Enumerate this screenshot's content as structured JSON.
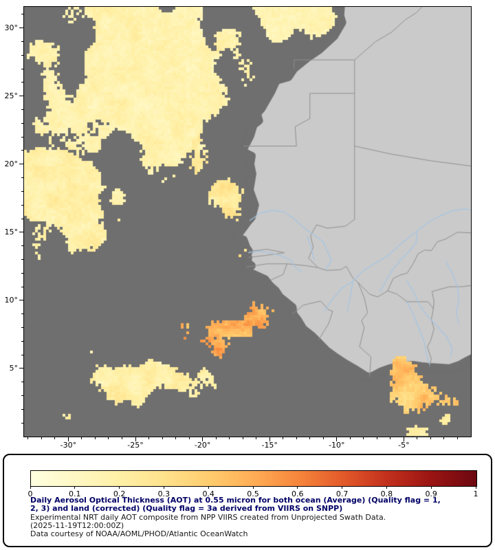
{
  "map": {
    "colors": {
      "no_data": "#6f6f6f",
      "land": "#cacaca",
      "country_border": "#8f8f8f",
      "river": "#a5c6e5",
      "frame": "#000000"
    },
    "y_axis": {
      "ticks": [
        {
          "label": "30°",
          "lat": 30
        },
        {
          "label": "25°",
          "lat": 25
        },
        {
          "label": "20°",
          "lat": 20
        },
        {
          "label": "15°",
          "lat": 15
        },
        {
          "label": "10°",
          "lat": 10
        },
        {
          "label": "5°",
          "lat": 5
        }
      ]
    },
    "x_axis": {
      "ticks": [
        {
          "label": "-30°",
          "lon": -30
        },
        {
          "label": "-25°",
          "lon": -25
        },
        {
          "label": "-20°",
          "lon": -20
        },
        {
          "label": "-15°",
          "lon": -15
        },
        {
          "label": "-10°",
          "lon": -10
        },
        {
          "label": "-5°",
          "lon": -5
        }
      ]
    }
  },
  "legend": {
    "ticks": [
      "0",
      "0.1",
      "0.2",
      "0.3",
      "0.4",
      "0.5",
      "0.6",
      "0.7",
      "0.8",
      "0.9",
      "1"
    ],
    "colors": [
      "#FFFFE0",
      "#FFF8C4",
      "#FFF0A6",
      "#FFE28C",
      "#FFCC6E",
      "#FFAD55",
      "#F6863C",
      "#E35A2A",
      "#C2301D",
      "#9A1413",
      "#6C0811"
    ],
    "title_color": "#000066",
    "info_color": "#151515",
    "title_lines": [
      "Daily Aerosol Optical Thickness (AOT) at 0.55 micron for both ocean (Average) (Quality flag = 1,",
      "2, 3) and land (corrected) (Quality flag = 3a derived from VIIRS on SNPP)"
    ],
    "info_lines": [
      "Experimental NRT daily AOT composite from NPP VIIRS created from Unprojected Swath Data.",
      "(2025-11-19T12:00:00Z)",
      "Data courtesy of NOAA/AOML/PHOD/Atlantic OceanWatch"
    ]
  },
  "chart_data": {
    "type": "heatmap",
    "title": "Daily Aerosol Optical Thickness (AOT) at 0.55 micron for both ocean (Average) (Quality flag = 1, 2, 3) and land (corrected) (Quality flag = 3a derived from VIIRS on SNPP)",
    "subtitle": "Experimental NRT daily AOT composite from NPP VIIRS created from Unprojected Swath Data.",
    "timestamp": "(2025-11-19T12:00:00Z)",
    "credit": "Data courtesy of NOAA/AOML/PHOD/Atlantic OceanWatch",
    "colorbar": {
      "min": 0,
      "max": 1,
      "tick_values": [
        0,
        0.1,
        0.2,
        0.3,
        0.4,
        0.5,
        0.6,
        0.7,
        0.8,
        0.9,
        1
      ],
      "tick_labels": [
        "0",
        "0.1",
        "0.2",
        "0.3",
        "0.4",
        "0.5",
        "0.6",
        "0.7",
        "0.8",
        "0.9",
        "1"
      ],
      "colors": [
        "#FFFFE0",
        "#FFF8C4",
        "#FFF0A6",
        "#FFE28C",
        "#FFCC6E",
        "#FFAD55",
        "#F6863C",
        "#E35A2A",
        "#C2301D",
        "#9A1413",
        "#6C0811"
      ],
      "position": "bottom"
    },
    "x_axis": {
      "tick_values": [
        -30,
        -25,
        -20,
        -15,
        -10,
        -5
      ],
      "tick_labels": [
        "-30°",
        "-25°",
        "-20°",
        "-15°",
        "-10°",
        "-5°"
      ],
      "range": [
        -33.3,
        0
      ]
    },
    "y_axis": {
      "tick_values": [
        30,
        25,
        20,
        15,
        10,
        5
      ],
      "tick_labels": [
        "30°",
        "25°",
        "20°",
        "15°",
        "10°",
        "5°"
      ],
      "range": [
        0,
        31.55
      ]
    },
    "grid": false
  }
}
